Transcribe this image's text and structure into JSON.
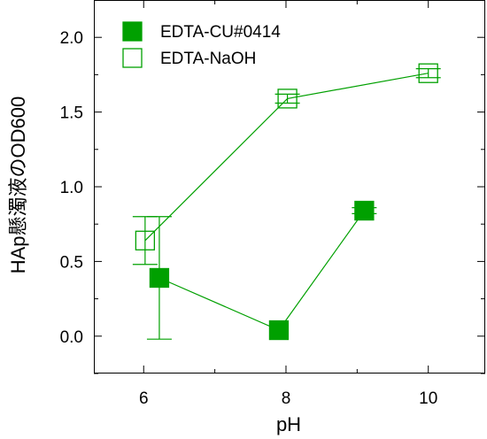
{
  "chart_data": {
    "type": "scatter",
    "xlabel": "pH",
    "ylabel": "HAp懸濁液のOD600",
    "xlim": [
      5.3,
      10.8
    ],
    "ylim": [
      -0.25,
      2.25
    ],
    "xticks": [
      6,
      8,
      10
    ],
    "xtick_labels": [
      "6",
      "8",
      "10"
    ],
    "yticks": [
      0.0,
      0.5,
      1.0,
      1.5,
      2.0
    ],
    "ytick_labels": [
      "0.0",
      "0.5",
      "1.0",
      "1.5",
      "2.0"
    ],
    "grid": false,
    "legend_position": "top-left",
    "series": [
      {
        "name": "EDTA-CU#0414",
        "marker": "filled-square",
        "color": "#00a000",
        "points": [
          {
            "x": 6.22,
            "y": 0.39,
            "err": 0.41
          },
          {
            "x": 7.9,
            "y": 0.04,
            "err": 0.0
          },
          {
            "x": 9.1,
            "y": 0.84,
            "err": 0.02
          }
        ]
      },
      {
        "name": "EDTA-NaOH",
        "marker": "open-square",
        "color": "#00a000",
        "points": [
          {
            "x": 6.02,
            "y": 0.64,
            "err": 0.16
          },
          {
            "x": 8.02,
            "y": 1.59,
            "err": 0.03
          },
          {
            "x": 10.0,
            "y": 1.76,
            "err": 0.03
          }
        ]
      }
    ]
  }
}
